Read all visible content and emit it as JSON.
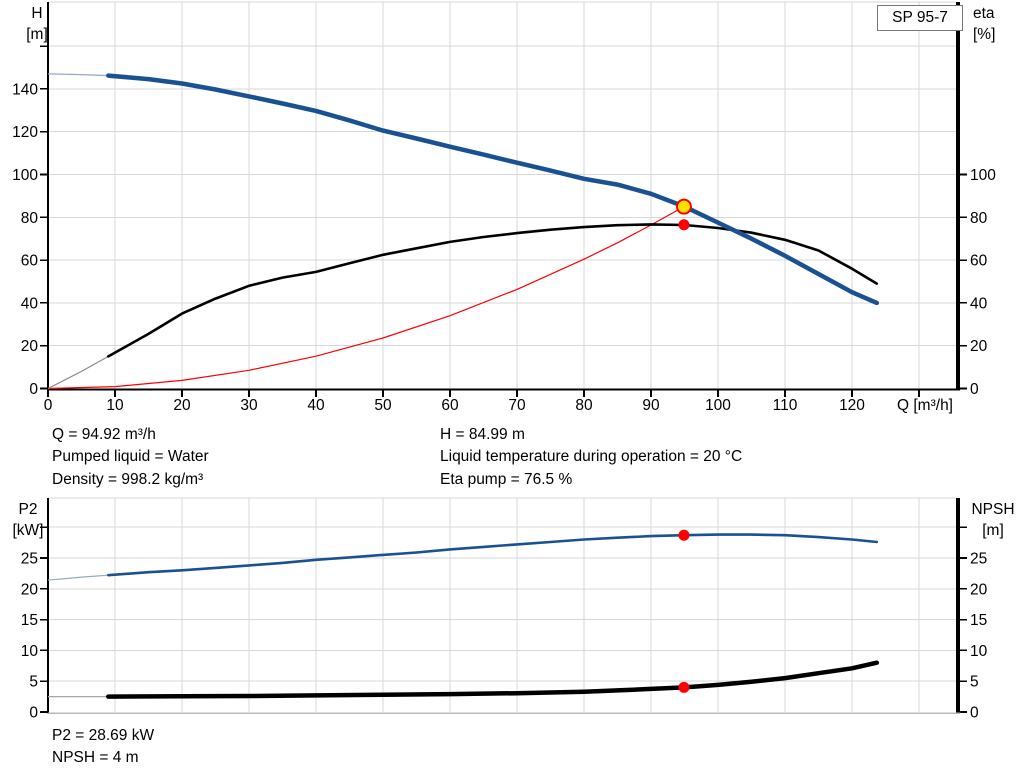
{
  "pump_label": "SP 95-7",
  "results_top": {
    "q": "Q = 94.92 m³/h",
    "pumped_liquid": "Pumped liquid = Water",
    "density": "Density = 998.2 kg/m³",
    "h": "H = 84.99 m",
    "liquid_temp": "Liquid temperature during operation = 20 °C",
    "eta_pump": "Eta pump = 76.5 %"
  },
  "results_bottom": {
    "p2": "P2 = 28.69 kW",
    "npsh": "NPSH = 4 m"
  },
  "colors": {
    "curve_blue": "#1a5193",
    "curve_black": "#000000",
    "curve_red": "#ff0000",
    "duty_yellow": "#ffdf00",
    "grid": "#d7d7d7",
    "axis": "#000000",
    "bottom_axis_gray": "#b9b9b9"
  },
  "chart_data": [
    {
      "type": "line",
      "name": "qh-eta-chart",
      "x_axis": {
        "label": "Q [m³/h]",
        "min": 0,
        "max": 135.5,
        "tick_values": [
          0,
          10,
          20,
          30,
          40,
          50,
          60,
          70,
          80,
          90,
          100,
          110,
          120,
          130
        ],
        "labeled_until": 120
      },
      "y_left": {
        "quantity": "H",
        "unit": "[m]",
        "min": 0,
        "max": 178,
        "tick_values": [
          0,
          20,
          40,
          60,
          80,
          100,
          120,
          140,
          160
        ],
        "labeled_until": 140
      },
      "y_right": {
        "quantity": "eta",
        "unit": "[%]",
        "tick_values": [
          0,
          20,
          40,
          60,
          80,
          100
        ],
        "labeled_until": 100
      },
      "series": [
        {
          "name": "system-curve",
          "color": "#ff0000",
          "width": 1.2,
          "points": [
            [
              0,
              0
            ],
            [
              10,
              0.9
            ],
            [
              20,
              3.8
            ],
            [
              30,
              8.5
            ],
            [
              40,
              15.1
            ],
            [
              50,
              23.6
            ],
            [
              60,
              34
            ],
            [
              70,
              46.3
            ],
            [
              80,
              60.4
            ],
            [
              85,
              68.1
            ],
            [
              90,
              76.4
            ],
            [
              94.92,
              84.99
            ]
          ]
        },
        {
          "name": "efficiency-curve",
          "color": "#000000",
          "lead_color": "#888888",
          "width": 2.6,
          "thick_from": 9,
          "points": [
            [
              0,
              0
            ],
            [
              5,
              8
            ],
            [
              9,
              15
            ],
            [
              15,
              25.5
            ],
            [
              20,
              35
            ],
            [
              25,
              42
            ],
            [
              30,
              48
            ],
            [
              35,
              51.8
            ],
            [
              40,
              54.5
            ],
            [
              45,
              58.5
            ],
            [
              50,
              62.5
            ],
            [
              55,
              65.5
            ],
            [
              60,
              68.5
            ],
            [
              65,
              70.8
            ],
            [
              70,
              72.6
            ],
            [
              75,
              74.2
            ],
            [
              80,
              75.4
            ],
            [
              85,
              76.3
            ],
            [
              90,
              76.7
            ],
            [
              95,
              76.4
            ],
            [
              100,
              75
            ],
            [
              105,
              72.8
            ],
            [
              110,
              69.5
            ],
            [
              115,
              64.5
            ],
            [
              120,
              56
            ],
            [
              123.7,
              49
            ]
          ]
        },
        {
          "name": "head-curve",
          "color": "#1a5193",
          "lead_color": "#93a9c4",
          "width": 4.5,
          "thick_from": 9,
          "points": [
            [
              0,
              147
            ],
            [
              5,
              146.7
            ],
            [
              9,
              146.2
            ],
            [
              15,
              144.6
            ],
            [
              20,
              142.5
            ],
            [
              25,
              139.7
            ],
            [
              30,
              136.5
            ],
            [
              35,
              133.2
            ],
            [
              40,
              129.7
            ],
            [
              45,
              125.3
            ],
            [
              50,
              120.5
            ],
            [
              55,
              116.8
            ],
            [
              60,
              113
            ],
            [
              65,
              109.3
            ],
            [
              70,
              105.5
            ],
            [
              75,
              101.8
            ],
            [
              80,
              98
            ],
            [
              85,
              95.3
            ],
            [
              90,
              91
            ],
            [
              95,
              85
            ],
            [
              100,
              77.5
            ],
            [
              105,
              70
            ],
            [
              110,
              62
            ],
            [
              115,
              53.5
            ],
            [
              120,
              45
            ],
            [
              123.7,
              40
            ]
          ]
        }
      ],
      "markers": [
        {
          "name": "duty-point-head",
          "x": 94.92,
          "y": 84.99,
          "r": 7,
          "fill": "#ffdf00",
          "stroke": "#ff0000",
          "stroke_width": 2
        },
        {
          "name": "duty-point-eta",
          "x": 94.92,
          "y": 76.5,
          "r": 5.5,
          "fill": "#ff0000",
          "stroke": "none",
          "stroke_width": 0
        }
      ]
    },
    {
      "type": "line",
      "name": "p2-npsh-chart",
      "x_axis": {
        "label": "",
        "min": 0,
        "max": 135.5,
        "tick_values": [
          10,
          20,
          30,
          40,
          50,
          60,
          70,
          80,
          90,
          100,
          110,
          120,
          130
        ],
        "labeled_until": -1
      },
      "y_left": {
        "quantity": "P2",
        "unit": "[kW]",
        "min": 0,
        "max": 34,
        "tick_values": [
          0,
          5,
          10,
          15,
          20,
          25,
          30
        ],
        "labeled_until": 25
      },
      "y_right": {
        "quantity": "NPSH",
        "unit": "[m]",
        "tick_values": [
          0,
          5,
          10,
          15,
          20,
          25,
          30
        ],
        "labeled_until": 25
      },
      "series": [
        {
          "name": "p2-curve",
          "color": "#1a5193",
          "lead_color": "#93a9c4",
          "width": 2.6,
          "thick_from": 9,
          "points": [
            [
              0,
              21.4
            ],
            [
              5,
              21.9
            ],
            [
              9,
              22.2
            ],
            [
              15,
              22.7
            ],
            [
              20,
              23
            ],
            [
              25,
              23.4
            ],
            [
              30,
              23.8
            ],
            [
              35,
              24.2
            ],
            [
              40,
              24.7
            ],
            [
              45,
              25.1
            ],
            [
              50,
              25.5
            ],
            [
              55,
              25.9
            ],
            [
              60,
              26.4
            ],
            [
              65,
              26.8
            ],
            [
              70,
              27.2
            ],
            [
              75,
              27.6
            ],
            [
              80,
              28
            ],
            [
              85,
              28.3
            ],
            [
              90,
              28.55
            ],
            [
              95,
              28.7
            ],
            [
              100,
              28.8
            ],
            [
              105,
              28.8
            ],
            [
              110,
              28.7
            ],
            [
              115,
              28.4
            ],
            [
              120,
              28
            ],
            [
              123.7,
              27.6
            ]
          ]
        },
        {
          "name": "npsh-curve",
          "color": "#000000",
          "lead_color": "#a6a6a6",
          "width": 4.5,
          "thick_from": 9,
          "points": [
            [
              0,
              2.5
            ],
            [
              9,
              2.5
            ],
            [
              20,
              2.55
            ],
            [
              30,
              2.6
            ],
            [
              40,
              2.7
            ],
            [
              50,
              2.8
            ],
            [
              60,
              2.9
            ],
            [
              70,
              3.05
            ],
            [
              80,
              3.3
            ],
            [
              85,
              3.5
            ],
            [
              90,
              3.75
            ],
            [
              95,
              4
            ],
            [
              100,
              4.4
            ],
            [
              105,
              4.9
            ],
            [
              110,
              5.5
            ],
            [
              115,
              6.3
            ],
            [
              120,
              7.1
            ],
            [
              123.7,
              8
            ]
          ]
        }
      ],
      "markers": [
        {
          "name": "duty-point-p2",
          "x": 94.92,
          "y": 28.69,
          "r": 5.5,
          "fill": "#ff0000",
          "stroke": "none",
          "stroke_width": 0
        },
        {
          "name": "duty-point-npsh",
          "x": 94.92,
          "y": 4,
          "r": 5.5,
          "fill": "#ff0000",
          "stroke": "none",
          "stroke_width": 0
        }
      ]
    }
  ]
}
